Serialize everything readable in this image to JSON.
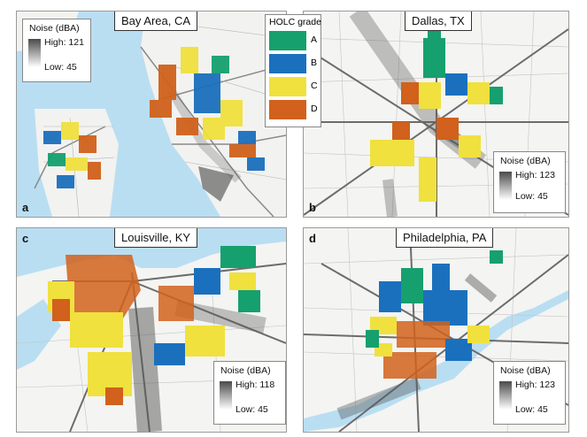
{
  "panels": {
    "a": {
      "letter": "a",
      "title": "Bay Area, CA",
      "noise_title": "Noise (dBA)",
      "noise_high": "High: 121",
      "noise_low": "Low: 45"
    },
    "b": {
      "letter": "b",
      "title": "Dallas, TX",
      "noise_title": "Noise (dBA)",
      "noise_high": "High: 123",
      "noise_low": "Low: 45"
    },
    "c": {
      "letter": "c",
      "title": "Louisville, KY",
      "noise_title": "Noise (dBA)",
      "noise_high": "High: 118",
      "noise_low": "Low: 45"
    },
    "d": {
      "letter": "d",
      "title": "Philadelphia, PA",
      "noise_title": "Noise (dBA)",
      "noise_high": "High: 123",
      "noise_low": "Low: 45"
    }
  },
  "legend": {
    "title": "HOLC grade",
    "grades": [
      {
        "label": "A",
        "color": "#16a06e"
      },
      {
        "label": "B",
        "color": "#1b70bd"
      },
      {
        "label": "C",
        "color": "#f0e13e"
      },
      {
        "label": "D",
        "color": "#d1611c"
      }
    ]
  },
  "colors": {
    "water": "#b9def2",
    "land": "#f4f4f2",
    "road": "#7a7a7a",
    "noise": "#555555"
  }
}
